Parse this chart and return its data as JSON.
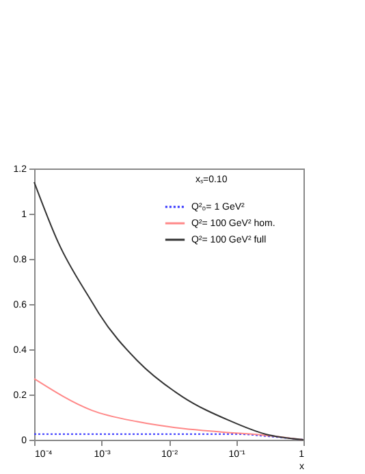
{
  "chart_data": {
    "type": "line",
    "xlabel": "x",
    "log": "x",
    "xlim": [
      0.0001,
      1
    ],
    "xticks": [
      {
        "value": 0.0001,
        "label": "10⁻⁴"
      },
      {
        "value": 0.001,
        "label": "10⁻³"
      },
      {
        "value": 0.01,
        "label": "10⁻²"
      },
      {
        "value": 0.1,
        "label": "10⁻¹"
      },
      1
    ],
    "ylim": [
      0,
      1.2
    ],
    "yticks": [
      0,
      0.2,
      0.4,
      0.6,
      0.8,
      1,
      1.2
    ],
    "grid": false,
    "legend": "top right",
    "marker": "none",
    "annotations": [
      "xₛ=0.10"
    ],
    "series": [
      {
        "name": "Q²₀= 1 GeV²",
        "color": "#3333ff",
        "line_style": "dotted",
        "x": [
          0.0001,
          0.001,
          0.01,
          0.1,
          0.3,
          1
        ],
        "values": [
          0.025,
          0.025,
          0.025,
          0.025,
          0.015,
          0
        ]
      },
      {
        "name": "Q²= 100 GeV² hom.",
        "color": "#ff8888",
        "line_style": "solid",
        "x": [
          0.0001,
          0.00072,
          0.0034,
          0.016,
          0.057,
          0.27,
          1
        ],
        "values": [
          0.27,
          0.13,
          0.08,
          0.05,
          0.035,
          0.02,
          0
        ]
      },
      {
        "name": "Q²= 100 GeV² full",
        "color": "#333333",
        "line_style": "solid",
        "x": [
          0.0001,
          0.00023,
          0.00072,
          0.00091,
          0.0034,
          0.016,
          0.079,
          0.27,
          1
        ],
        "values": [
          1.14,
          0.87,
          0.61,
          0.56,
          0.35,
          0.19,
          0.085,
          0.025,
          0
        ]
      }
    ]
  }
}
